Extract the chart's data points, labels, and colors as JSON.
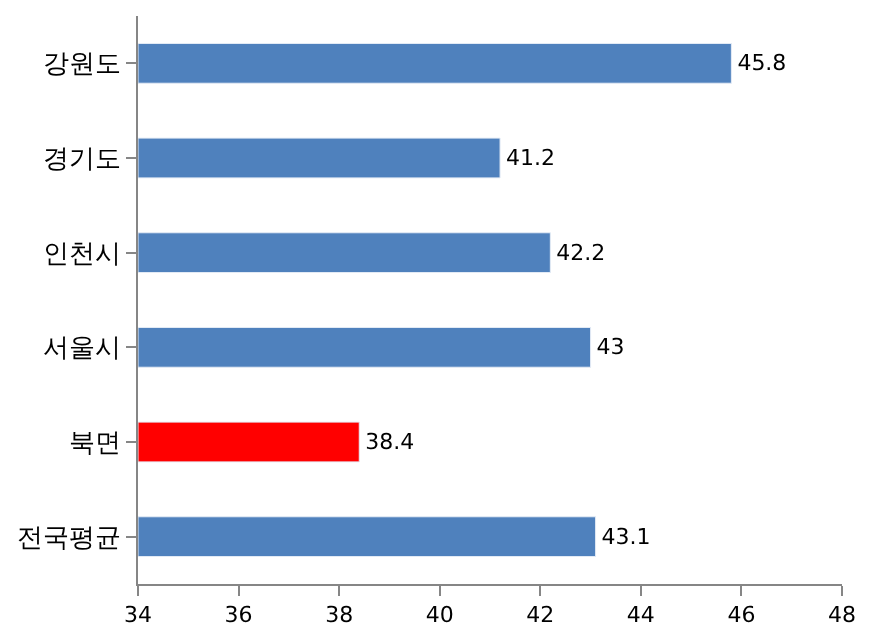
{
  "chart_data": {
    "type": "bar",
    "orientation": "horizontal",
    "categories": [
      "강원도",
      "경기도",
      "인천시",
      "서울시",
      "북면",
      "전국평균"
    ],
    "values": [
      45.8,
      41.2,
      42.2,
      43,
      38.4,
      43.1
    ],
    "colors": [
      "#4f81bd",
      "#4f81bd",
      "#4f81bd",
      "#4f81bd",
      "#ff0000",
      "#4f81bd"
    ],
    "xlim": [
      34,
      48
    ],
    "xticks": [
      34,
      36,
      38,
      40,
      42,
      44,
      46,
      48
    ],
    "data_labels": true
  }
}
